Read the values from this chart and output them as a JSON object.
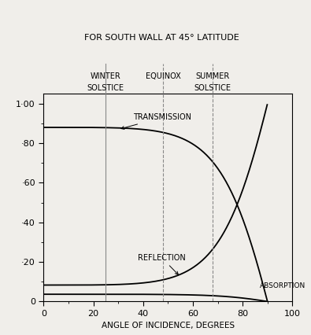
{
  "title_line1": "FOR SOUTH WALL AT 45° LATITUDE",
  "xlabel": "ANGLE OF INCIDENCE, DEGREES",
  "ytick_labels": [
    "0",
    "·20",
    "·40",
    "·60",
    "·80",
    "1·00"
  ],
  "ytick_values": [
    0.0,
    0.2,
    0.4,
    0.6,
    0.8,
    1.0
  ],
  "xtick_labels": [
    "0",
    "20",
    "40",
    "60",
    "80",
    "100"
  ],
  "xtick_values": [
    0,
    20,
    40,
    60,
    80,
    100
  ],
  "xlim": [
    0,
    100
  ],
  "ylim": [
    0.0,
    1.05
  ],
  "vlines": [
    25,
    48,
    68
  ],
  "vline_styles": [
    "solid",
    "dashed",
    "dashed"
  ],
  "label_transmission": "TRANSMISSION",
  "label_reflection": "REFLECTION",
  "label_absorption": "ABSORPTION",
  "winter_line1": "WINTER",
  "winter_line2": "SOLSTICE",
  "equinox": "EQUINOX",
  "summer_line1": "SUMMER",
  "summer_line2": "SOLSTICE",
  "line_color": "#000000",
  "vline_color": "#888888",
  "bg_color": "#f0eeea"
}
